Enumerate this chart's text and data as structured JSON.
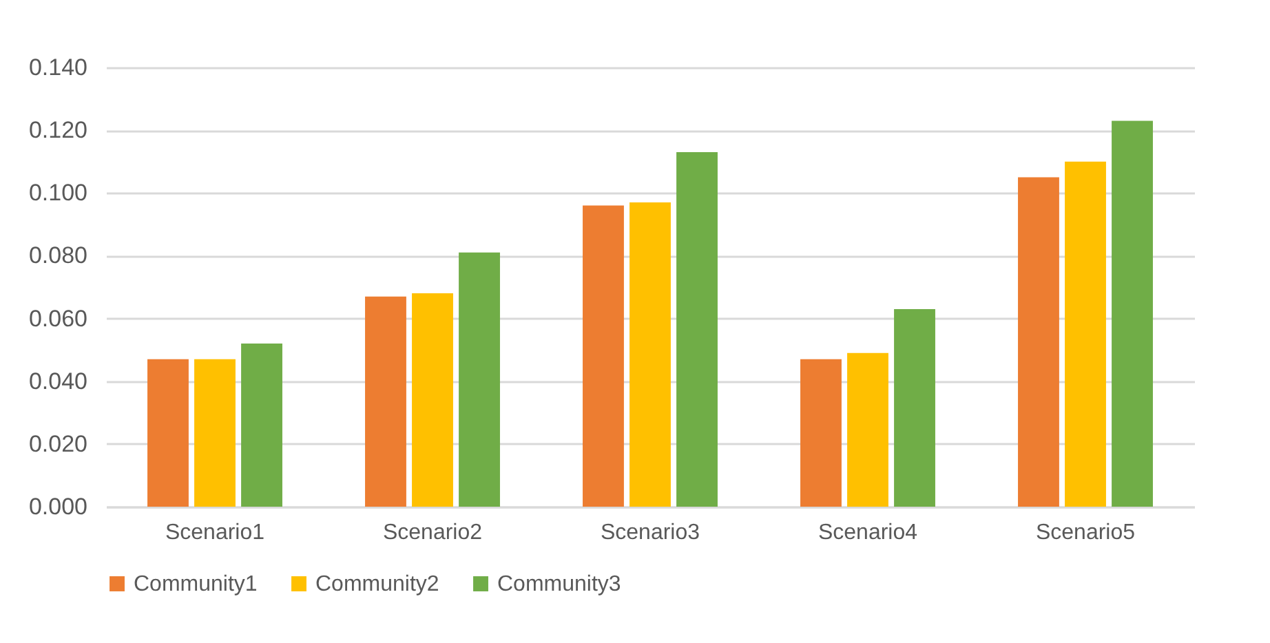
{
  "chart_data": {
    "type": "bar",
    "categories": [
      "Scenario1",
      "Scenario2",
      "Scenario3",
      "Scenario4",
      "Scenario5"
    ],
    "series": [
      {
        "name": "Community1",
        "color": "#ed7d31",
        "values": [
          0.047,
          0.067,
          0.096,
          0.047,
          0.105
        ]
      },
      {
        "name": "Community2",
        "color": "#ffc000",
        "values": [
          0.047,
          0.068,
          0.097,
          0.049,
          0.11
        ]
      },
      {
        "name": "Community3",
        "color": "#70ad47",
        "values": [
          0.052,
          0.081,
          0.113,
          0.063,
          0.123
        ]
      }
    ],
    "ylim": [
      0,
      0.14
    ],
    "yticks": [
      {
        "value": 0,
        "label": "0.000"
      },
      {
        "value": 0.02,
        "label": "0.020"
      },
      {
        "value": 0.04,
        "label": "0.040"
      },
      {
        "value": 0.06,
        "label": "0.060"
      },
      {
        "value": 0.08,
        "label": "0.080"
      },
      {
        "value": 0.1,
        "label": "0.100"
      },
      {
        "value": 0.12,
        "label": "0.120"
      },
      {
        "value": 0.14,
        "label": "0.140"
      }
    ],
    "grid": "y",
    "legend": "bottom"
  }
}
